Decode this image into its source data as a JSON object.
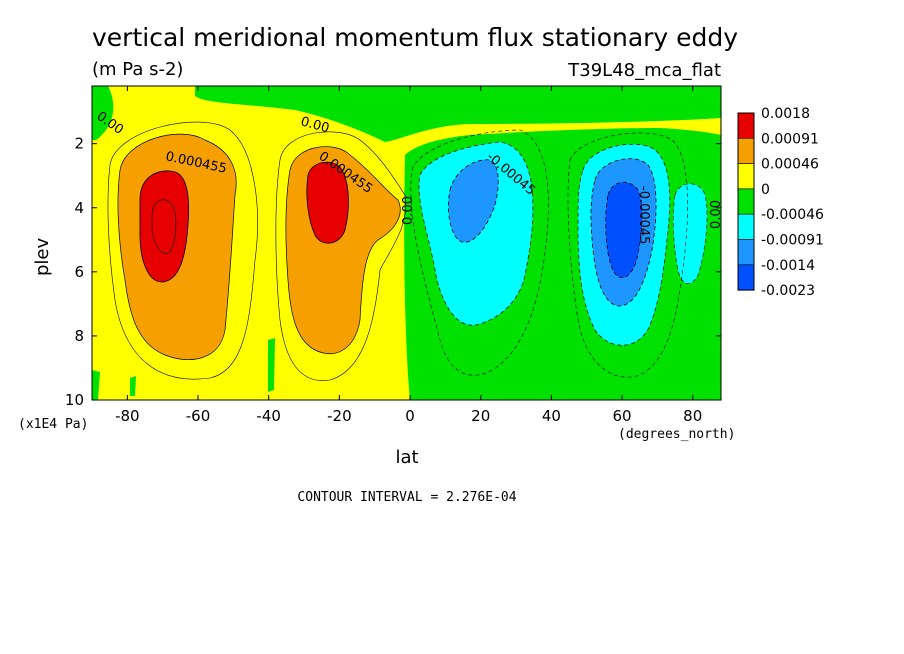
{
  "chart_data": {
    "type": "heatmap",
    "title": "vertical meridional momentum flux stationary eddy",
    "units": "(m Pa s-2)",
    "run_label": "T39L48_mca_flat",
    "xlabel": "lat",
    "x_units": "(degrees_north)",
    "ylabel": "plev",
    "y_units": "(x1E4 Pa)",
    "footer": "CONTOUR INTERVAL = 2.276E-04",
    "xlim": [
      -90,
      88
    ],
    "ylim": [
      10,
      0.2
    ],
    "x_ticks": [
      "-80",
      "-60",
      "-40",
      "-20",
      "0",
      "20",
      "40",
      "60",
      "80"
    ],
    "y_ticks": [
      "2",
      "4",
      "6",
      "8",
      "10"
    ],
    "legend_labels": [
      "0.0018",
      "0.00091",
      "0.00046",
      "0",
      "-0.00046",
      "-0.00091",
      "-0.0014",
      "-0.0023"
    ],
    "legend_colors": [
      "#e60000",
      "#f5a000",
      "#ffff00",
      "#00e100",
      "#00ffff",
      "#1e96ff",
      "#0050ff"
    ],
    "contour_labels": [
      "0.00",
      "0.000455",
      "0.00",
      "0.000455",
      "0.00",
      "-0.00045",
      "-0.00045",
      "0.00"
    ],
    "features": [
      {
        "lat": -68,
        "plev": 4.2,
        "value": 0.0019
      },
      {
        "lat": -22,
        "plev": 3.6,
        "value": 0.0019
      },
      {
        "lat": 15,
        "plev": 4.0,
        "value": -0.0012
      },
      {
        "lat": 62,
        "plev": 4.8,
        "value": -0.0021
      },
      {
        "lat": 80,
        "plev": 4.5,
        "value": -0.0007
      }
    ]
  }
}
